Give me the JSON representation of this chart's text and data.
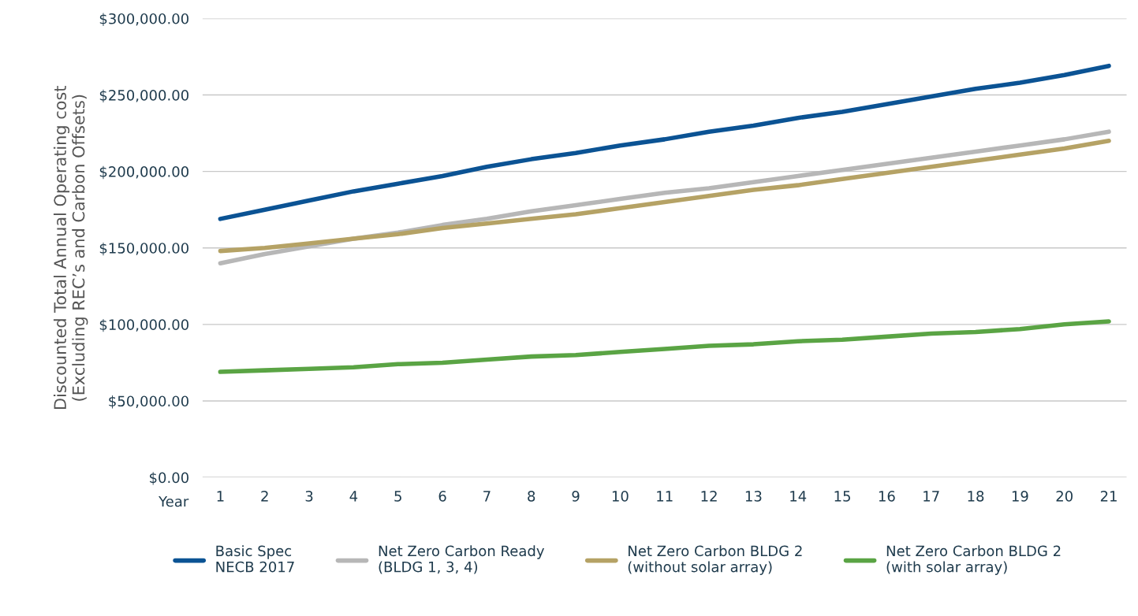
{
  "chart_data": {
    "type": "line",
    "ylabel": "Discounted Total Annual Operating cost\n(Excluding REC’s and Carbon Offsets)",
    "xlabel": "Year",
    "categories": [
      "1",
      "2",
      "3",
      "4",
      "5",
      "6",
      "7",
      "8",
      "9",
      "10",
      "11",
      "12",
      "13",
      "14",
      "15",
      "16",
      "17",
      "18",
      "19",
      "20",
      "21"
    ],
    "series": [
      {
        "name": "Basic Spec\nNECB 2017",
        "color": "#0b5394",
        "values": [
          169000,
          175000,
          181000,
          187000,
          192000,
          197000,
          203000,
          208000,
          212000,
          217000,
          221000,
          226000,
          230000,
          235000,
          239000,
          244000,
          249000,
          254000,
          258000,
          263000,
          269000
        ]
      },
      {
        "name": "Net Zero Carbon Ready\n(BLDG 1, 3, 4)",
        "color": "#b7b7b7",
        "values": [
          140000,
          146000,
          151000,
          156000,
          160000,
          165000,
          169000,
          174000,
          178000,
          182000,
          186000,
          189000,
          193000,
          197000,
          201000,
          205000,
          209000,
          213000,
          217000,
          221000,
          226000
        ]
      },
      {
        "name": "Net Zero Carbon BLDG 2\n(without solar array)",
        "color": "#b5a265",
        "values": [
          148000,
          150000,
          153000,
          156000,
          159000,
          163000,
          166000,
          169000,
          172000,
          176000,
          180000,
          184000,
          188000,
          191000,
          195000,
          199000,
          203000,
          207000,
          211000,
          215000,
          220000
        ]
      },
      {
        "name": "Net Zero Carbon BLDG 2\n(with solar array)",
        "color": "#5aa444",
        "values": [
          69000,
          70000,
          71000,
          72000,
          74000,
          75000,
          77000,
          79000,
          80000,
          82000,
          84000,
          86000,
          87000,
          89000,
          90000,
          92000,
          94000,
          95000,
          97000,
          100000,
          102000
        ]
      }
    ],
    "ylim": [
      0,
      300000
    ],
    "yticks": [
      {
        "value": 0,
        "label": "$0.00"
      },
      {
        "value": 50000,
        "label": "$50,000.00"
      },
      {
        "value": 100000,
        "label": "$100,000.00"
      },
      {
        "value": 150000,
        "label": "$150,000.00"
      },
      {
        "value": 200000,
        "label": "$200,000.00"
      },
      {
        "value": 250000,
        "label": "$250,000.00"
      },
      {
        "value": 300000,
        "label": "$300,000.00"
      }
    ],
    "grid": "y",
    "legend": "bottom",
    "marker": "none",
    "line_style": "solid"
  }
}
